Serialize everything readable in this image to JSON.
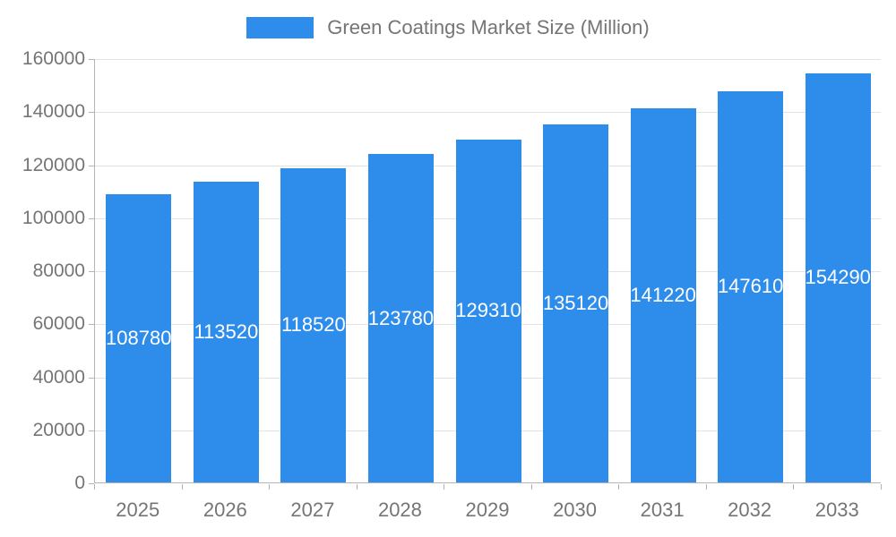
{
  "chart_data": {
    "type": "bar",
    "title": "Green Coatings Market Size (Million)",
    "categories": [
      "2025",
      "2026",
      "2027",
      "2028",
      "2029",
      "2030",
      "2031",
      "2032",
      "2033"
    ],
    "values": [
      108780,
      113520,
      118520,
      123780,
      129310,
      135120,
      141220,
      147610,
      154290
    ],
    "bar_labels": [
      "108780",
      "113520",
      "118520",
      "123780",
      "129310",
      "135120",
      "141220",
      "147610",
      "154290"
    ],
    "xlabel": "",
    "ylabel": "",
    "ylim": [
      0,
      160000
    ],
    "ytick_step": 20000,
    "ytick_labels": [
      "0",
      "20000",
      "40000",
      "60000",
      "80000",
      "100000",
      "120000",
      "140000",
      "160000"
    ],
    "grid": true,
    "legend_position": "top",
    "colors": {
      "bar": "#2E8DEB",
      "bar_value_text": "#ffffff",
      "axis_text": "#757575",
      "gridline": "#e3e3e3",
      "axis_line": "#b4b4b4",
      "background": "#ffffff"
    }
  }
}
